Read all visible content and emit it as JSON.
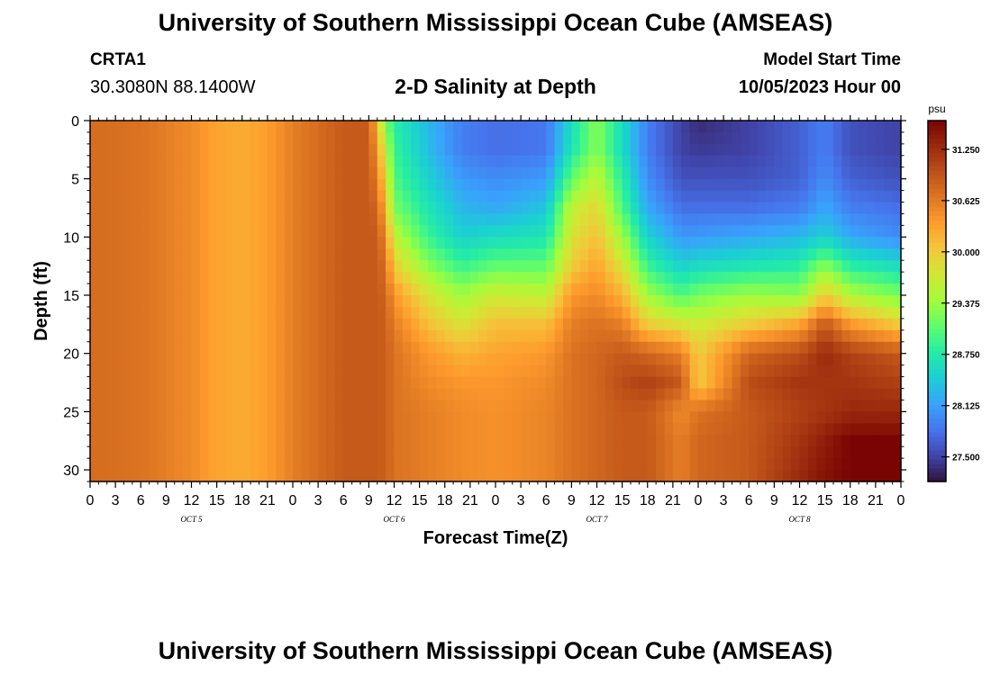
{
  "title": "University of Southern Mississippi Ocean Cube (AMSEAS)",
  "footer_title": "University of Southern Mississippi Ocean Cube (AMSEAS)",
  "station": {
    "id": "CRTA1",
    "coordinates": "30.3080N  88.1400W"
  },
  "subtitle": "2-D Salinity at Depth",
  "model_start": {
    "label": "Model Start Time",
    "value": "10/05/2023 Hour 00"
  },
  "chart_data": {
    "type": "heatmap",
    "title": "2-D Salinity at Depth",
    "xlabel": "Forecast Time(Z)",
    "ylabel": "Depth (ft)",
    "x_range_hours": [
      0,
      96
    ],
    "y_range_ft": [
      0,
      31
    ],
    "x_tick_hours": [
      0,
      3,
      6,
      9,
      12,
      15,
      18,
      21,
      24,
      27,
      30,
      33,
      36,
      39,
      42,
      45,
      48,
      51,
      54,
      57,
      60,
      63,
      66,
      69,
      72,
      75,
      78,
      81,
      84,
      87,
      90,
      93,
      96
    ],
    "x_tick_labels": [
      "0",
      "3",
      "6",
      "9",
      "12",
      "15",
      "18",
      "21",
      "0",
      "3",
      "6",
      "9",
      "12",
      "15",
      "18",
      "21",
      "0",
      "3",
      "6",
      "9",
      "12",
      "15",
      "18",
      "21",
      "0",
      "3",
      "6",
      "9",
      "12",
      "15",
      "18",
      "21",
      "0"
    ],
    "y_ticks": [
      0,
      5,
      10,
      15,
      20,
      25,
      30
    ],
    "y_tick_labels": [
      "0",
      "5",
      "10",
      "15",
      "20",
      "25",
      "30"
    ],
    "day_labels": [
      {
        "label": "OCT 5",
        "hour": 12
      },
      {
        "label": "OCT 6",
        "hour": 36
      },
      {
        "label": "OCT 7",
        "hour": 60
      },
      {
        "label": "OCT 8",
        "hour": 84
      }
    ],
    "colorbar": {
      "unit": "psu",
      "range": [
        27.2,
        31.6
      ],
      "ticks": [
        27.5,
        28.125,
        28.75,
        29.375,
        30.0,
        30.625,
        31.25
      ],
      "tick_labels": [
        "27.500",
        "28.125",
        "28.750",
        "29.375",
        "30.000",
        "30.625",
        "31.250"
      ]
    },
    "grid_hours": [
      0,
      6,
      12,
      15,
      18,
      21,
      24,
      30,
      33,
      34,
      35,
      36,
      40,
      44,
      48,
      54,
      57,
      60,
      63,
      66,
      70,
      72,
      78,
      84,
      87,
      90,
      96
    ],
    "grid_depths_ft": [
      0,
      2.5,
      5,
      7.5,
      10,
      12.5,
      15,
      17.5,
      20,
      22.5,
      25,
      27.5,
      31
    ],
    "salinity_psu": [
      [
        30.75,
        30.75,
        30.75,
        30.75,
        30.75,
        30.75,
        30.75,
        30.75,
        30.75,
        30.75,
        30.75,
        30.75,
        30.75
      ],
      [
        30.7,
        30.7,
        30.7,
        30.7,
        30.7,
        30.7,
        30.7,
        30.7,
        30.7,
        30.7,
        30.7,
        30.7,
        30.7
      ],
      [
        30.5,
        30.5,
        30.5,
        30.5,
        30.5,
        30.5,
        30.5,
        30.5,
        30.5,
        30.5,
        30.5,
        30.5,
        30.5
      ],
      [
        30.3,
        30.3,
        30.3,
        30.3,
        30.3,
        30.3,
        30.3,
        30.3,
        30.3,
        30.3,
        30.3,
        30.3,
        30.3
      ],
      [
        30.25,
        30.25,
        30.25,
        30.25,
        30.25,
        30.25,
        30.25,
        30.25,
        30.25,
        30.25,
        30.25,
        30.25,
        30.25
      ],
      [
        30.35,
        30.35,
        30.35,
        30.35,
        30.35,
        30.35,
        30.35,
        30.35,
        30.35,
        30.35,
        30.35,
        30.35,
        30.35
      ],
      [
        30.6,
        30.6,
        30.6,
        30.6,
        30.6,
        30.6,
        30.6,
        30.6,
        30.6,
        30.6,
        30.6,
        30.6,
        30.6
      ],
      [
        30.9,
        30.9,
        30.9,
        30.9,
        30.9,
        30.9,
        30.9,
        30.9,
        30.9,
        30.9,
        30.9,
        30.9,
        30.9
      ],
      [
        30.9,
        30.9,
        30.9,
        30.9,
        30.9,
        30.9,
        30.9,
        30.9,
        30.9,
        30.9,
        30.9,
        30.9,
        30.9
      ],
      [
        30.1,
        30.4,
        30.6,
        30.8,
        30.9,
        30.9,
        30.9,
        30.9,
        30.9,
        30.9,
        30.9,
        30.9,
        30.9
      ],
      [
        29.2,
        29.6,
        29.9,
        30.2,
        30.5,
        30.7,
        30.8,
        30.85,
        30.85,
        30.85,
        30.85,
        30.85,
        30.85
      ],
      [
        28.8,
        28.9,
        29.0,
        29.2,
        29.6,
        30.0,
        30.4,
        30.6,
        30.7,
        30.7,
        30.7,
        30.7,
        30.7
      ],
      [
        28.3,
        28.35,
        28.5,
        28.7,
        28.9,
        29.3,
        29.8,
        30.1,
        30.4,
        30.5,
        30.6,
        30.6,
        30.6
      ],
      [
        27.9,
        27.9,
        28.1,
        28.3,
        28.5,
        28.9,
        29.4,
        29.8,
        30.2,
        30.4,
        30.5,
        30.5,
        30.5
      ],
      [
        27.8,
        27.8,
        28.0,
        28.2,
        28.6,
        29.1,
        29.7,
        30.1,
        30.3,
        30.4,
        30.45,
        30.45,
        30.45
      ],
      [
        27.85,
        27.85,
        28.1,
        28.4,
        28.7,
        29.1,
        29.6,
        30.1,
        30.4,
        30.5,
        30.55,
        30.55,
        30.55
      ],
      [
        28.6,
        28.7,
        29.1,
        29.6,
        29.8,
        30.0,
        30.4,
        30.6,
        30.7,
        30.7,
        30.7,
        30.7,
        30.7
      ],
      [
        29.3,
        29.3,
        29.6,
        29.9,
        30.1,
        30.3,
        30.5,
        30.7,
        30.8,
        30.8,
        30.8,
        30.8,
        30.8
      ],
      [
        28.6,
        28.6,
        28.8,
        29.0,
        29.4,
        29.8,
        30.2,
        30.6,
        30.9,
        31.0,
        30.9,
        30.9,
        30.9
      ],
      [
        27.9,
        27.9,
        28.0,
        28.2,
        28.5,
        28.9,
        29.4,
        30.0,
        30.8,
        31.1,
        30.9,
        30.9,
        30.9
      ],
      [
        27.5,
        27.5,
        27.6,
        27.8,
        28.1,
        28.5,
        29.0,
        29.8,
        30.6,
        30.9,
        30.5,
        30.6,
        30.6
      ],
      [
        27.35,
        27.45,
        27.6,
        27.8,
        28.1,
        28.6,
        29.2,
        29.7,
        30.0,
        30.0,
        30.7,
        30.8,
        30.8
      ],
      [
        27.5,
        27.5,
        27.6,
        27.8,
        28.2,
        28.7,
        29.4,
        30.0,
        30.8,
        31.0,
        30.9,
        30.9,
        30.9
      ],
      [
        27.7,
        27.7,
        27.7,
        27.9,
        28.3,
        28.8,
        29.3,
        30.3,
        31.0,
        31.2,
        31.1,
        31.2,
        31.3
      ],
      [
        27.9,
        27.9,
        28.0,
        28.2,
        28.5,
        29.3,
        30.0,
        30.9,
        31.3,
        31.2,
        31.2,
        31.4,
        31.5
      ],
      [
        27.6,
        27.6,
        27.7,
        27.9,
        28.2,
        28.8,
        29.5,
        30.4,
        31.1,
        31.2,
        31.3,
        31.6,
        31.6
      ],
      [
        27.5,
        27.5,
        27.6,
        27.8,
        28.0,
        28.6,
        29.2,
        30.0,
        30.9,
        31.1,
        31.3,
        31.6,
        31.7
      ]
    ]
  }
}
